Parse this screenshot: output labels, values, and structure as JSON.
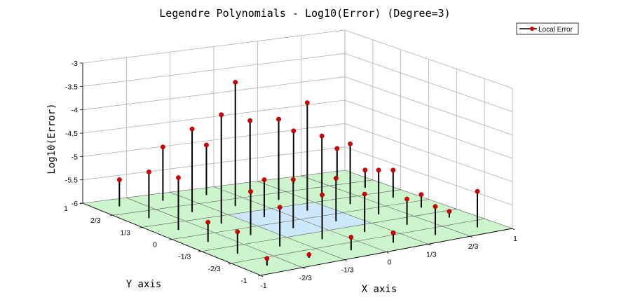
{
  "chart_data": {
    "type": "stem3",
    "title": "Legendre Polynomials - Log10(Error)  (Degree=3)",
    "xlabel": "X axis",
    "ylabel": "Y axis",
    "zlabel": "Log10(Error)",
    "xlim": [
      -1,
      1
    ],
    "ylim": [
      -1,
      1
    ],
    "zlim": [
      -6,
      -3
    ],
    "x_ticks": [
      "-1",
      "-2/3",
      "-1/3",
      "0",
      "1/3",
      "2/3",
      "1"
    ],
    "y_ticks": [
      "-1",
      "-2/3",
      "-1/3",
      "0",
      "1/3",
      "2/3",
      "1"
    ],
    "z_ticks": [
      "-3",
      "-3.5",
      "-4",
      "-4.5",
      "-5",
      "-5.5",
      "-6"
    ],
    "grid": true,
    "legend": {
      "placement": "top-right",
      "entries": [
        "Local Error"
      ]
    },
    "floor_colors": {
      "outer": "#ccf5cc",
      "inner": "#cce8fa"
    },
    "series": [
      {
        "name": "Local Error",
        "color": "#d40000",
        "points": [
          {
            "x": -0.833,
            "y": 0.833,
            "z": -5.43
          },
          {
            "x": -0.5,
            "y": 0.833,
            "z": -4.85
          },
          {
            "x": -0.167,
            "y": 0.833,
            "z": -4.93
          },
          {
            "x": 0.167,
            "y": 0.833,
            "z": -4.53
          },
          {
            "x": 0.5,
            "y": 0.833,
            "z": -4.87
          },
          {
            "x": 0.833,
            "y": 0.833,
            "z": -5.37
          },
          {
            "x": -0.833,
            "y": 0.5,
            "z": -5.01
          },
          {
            "x": -0.5,
            "y": 0.5,
            "z": -4.22
          },
          {
            "x": -0.167,
            "y": 0.5,
            "z": -3.35
          },
          {
            "x": 0.167,
            "y": 0.5,
            "z": -4.27
          },
          {
            "x": 0.5,
            "y": 0.5,
            "z": -4.76
          },
          {
            "x": 0.833,
            "y": 0.5,
            "z": -5.62
          },
          {
            "x": -0.833,
            "y": 0.167,
            "z": -4.88
          },
          {
            "x": -0.5,
            "y": 0.167,
            "z": -3.67
          },
          {
            "x": -0.167,
            "y": 0.167,
            "z": -5.2
          },
          {
            "x": 0.167,
            "y": 0.167,
            "z": -3.69
          },
          {
            "x": 0.5,
            "y": 0.167,
            "z": -4.71
          },
          {
            "x": 0.833,
            "y": 0.167,
            "z": -5.41
          },
          {
            "x": -0.833,
            "y": -0.167,
            "z": -5.58
          },
          {
            "x": -0.5,
            "y": -0.167,
            "z": -5.07
          },
          {
            "x": -0.167,
            "y": -0.167,
            "z": -4.96
          },
          {
            "x": 0.167,
            "y": -0.167,
            "z": -5.08
          },
          {
            "x": 0.5,
            "y": -0.167,
            "z": -5.05
          },
          {
            "x": 0.833,
            "y": -0.167,
            "z": -5.72
          },
          {
            "x": -0.833,
            "y": -0.5,
            "z": -5.53
          },
          {
            "x": -0.5,
            "y": -0.5,
            "z": -5.16
          },
          {
            "x": -0.167,
            "y": -0.5,
            "z": -5.05
          },
          {
            "x": 0.167,
            "y": -0.5,
            "z": -5.19
          },
          {
            "x": 0.5,
            "y": -0.5,
            "z": -5.45
          },
          {
            "x": 0.833,
            "y": -0.5,
            "z": -5.87
          },
          {
            "x": -0.833,
            "y": -0.833,
            "z": -5.85
          },
          {
            "x": -0.5,
            "y": -0.833,
            "z": -5.93
          },
          {
            "x": -0.167,
            "y": -0.833,
            "z": -5.72
          },
          {
            "x": 0.167,
            "y": -0.833,
            "z": -5.79
          },
          {
            "x": 0.5,
            "y": -0.833,
            "z": -5.39
          },
          {
            "x": 0.833,
            "y": -0.833,
            "z": -5.23
          }
        ]
      }
    ]
  }
}
